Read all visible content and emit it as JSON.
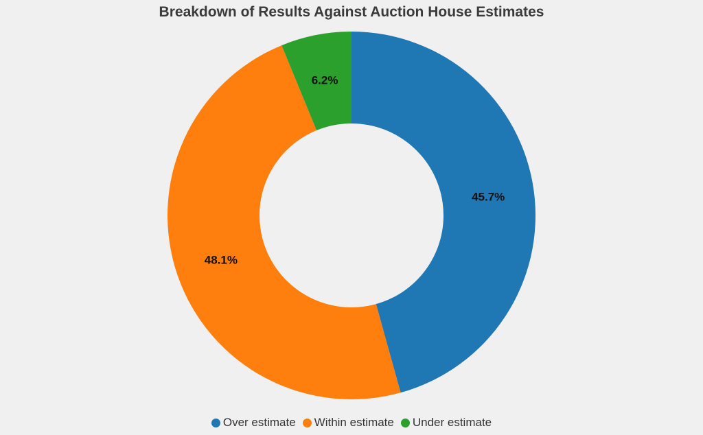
{
  "chart_data": {
    "type": "pie",
    "title": "Breakdown of Results Against Auction House Estimates",
    "hole": true,
    "legend_placement": "bottom",
    "slices": [
      {
        "label": "Over estimate",
        "value": 45.7,
        "display": "45.7%",
        "color": "#1f77b4"
      },
      {
        "label": "Within estimate",
        "value": 48.1,
        "display": "48.1%",
        "color": "#ff7f0e"
      },
      {
        "label": "Under estimate",
        "value": 6.2,
        "display": "6.2%",
        "color": "#2ca02c"
      }
    ]
  }
}
